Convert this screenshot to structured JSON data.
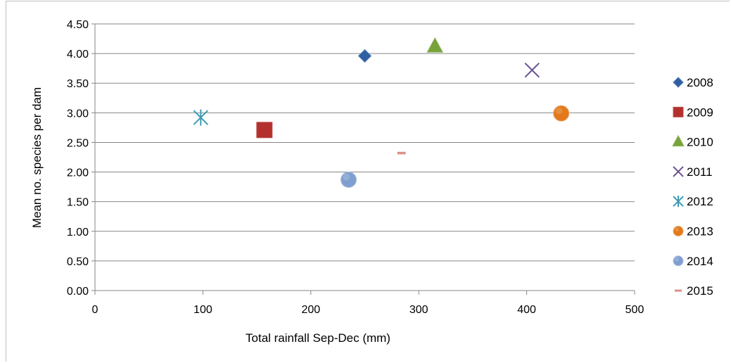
{
  "chart_data": {
    "type": "scatter",
    "title": "",
    "xlabel": "Total rainfall Sep-Dec (mm)",
    "ylabel": "Mean no. species per dam",
    "xlim": [
      0,
      500
    ],
    "ylim": [
      0,
      4.5
    ],
    "x_ticks": [
      "0",
      "100",
      "200",
      "300",
      "400",
      "500"
    ],
    "y_ticks": [
      "0.00",
      "0.50",
      "1.00",
      "1.50",
      "2.00",
      "2.50",
      "3.00",
      "3.50",
      "4.00",
      "4.50"
    ],
    "grid": "horizontal",
    "legend_position": "right",
    "series": [
      {
        "name": "2008",
        "marker": "diamond",
        "color": "#2e5fa3",
        "x": 250,
        "y": 3.96
      },
      {
        "name": "2009",
        "marker": "square",
        "color": "#b3302d",
        "x": 157,
        "y": 2.71
      },
      {
        "name": "2010",
        "marker": "triangle",
        "color": "#77a33a",
        "x": 315,
        "y": 4.12
      },
      {
        "name": "2011",
        "marker": "x",
        "color": "#6a5391",
        "x": 405,
        "y": 3.72
      },
      {
        "name": "2012",
        "marker": "asterisk",
        "color": "#3c9bb5",
        "x": 98,
        "y": 2.92
      },
      {
        "name": "2013",
        "marker": "circle",
        "color": "#e2791c",
        "x": 432,
        "y": 2.99
      },
      {
        "name": "2014",
        "marker": "circle",
        "color": "#7f9fd0",
        "x": 235,
        "y": 1.87
      },
      {
        "name": "2015",
        "marker": "dash",
        "color": "#de8f8c",
        "x": 284,
        "y": 2.32
      }
    ]
  }
}
